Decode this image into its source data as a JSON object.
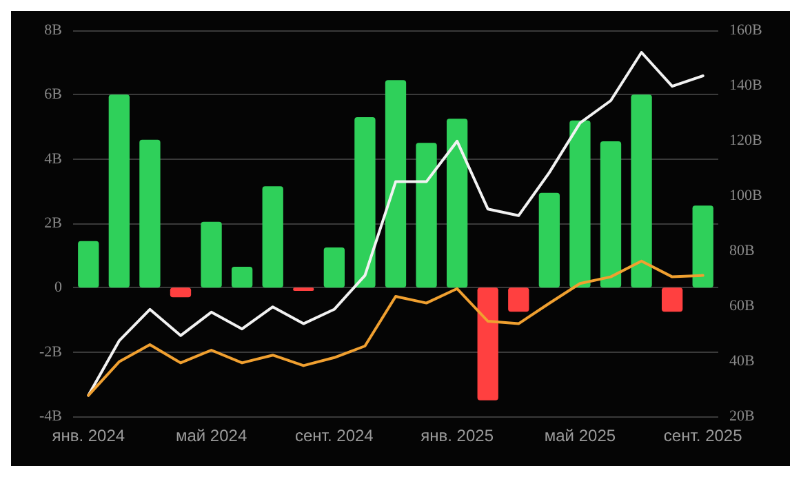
{
  "chart_data": {
    "type": "bar",
    "categories": [
      "янв. 2024",
      null,
      null,
      null,
      "май 2024",
      null,
      null,
      null,
      "сент. 2024",
      null,
      null,
      null,
      "янв. 2025",
      null,
      null,
      null,
      "май 2025",
      null,
      null,
      null,
      "сент. 2025"
    ],
    "series": [
      {
        "colors": [
          "#2fd05a",
          "#2fd05a",
          "#2fd05a",
          "#ff4040",
          "#2fd05a",
          "#2fd05a",
          "#2fd05a",
          "#ff4040",
          "#2fd05a",
          "#2fd05a",
          "#2fd05a",
          "#2fd05a",
          "#2fd05a",
          "#ff4040",
          "#ff4040",
          "#2fd05a",
          "#2fd05a",
          "#2fd05a",
          "#2fd05a",
          "#ff4040",
          "#2fd05a"
        ],
        "values": [
          1.45,
          6.0,
          4.6,
          -0.3,
          2.05,
          0.65,
          3.15,
          -0.1,
          1.25,
          5.3,
          6.45,
          4.5,
          5.25,
          -3.5,
          -0.75,
          2.95,
          5.2,
          4.55,
          6.0,
          -0.75,
          2.55
        ]
      },
      {
        "type": "line",
        "axis": "y2",
        "color": "#f2f2f2",
        "values": [
          27.6,
          47.4,
          58.8,
          49.3,
          57.8,
          51.7,
          59.7,
          53.6,
          58.8,
          71.1,
          105.1,
          105.1,
          119.8,
          95.2,
          92.8,
          108.4,
          126.4,
          134.5,
          152,
          139.7,
          143.5
        ]
      },
      {
        "type": "line",
        "axis": "y2",
        "color": "#f0a030",
        "values": [
          27.6,
          39.8,
          46,
          39.4,
          44,
          39.4,
          42.2,
          38.4,
          41.3,
          45.5,
          63.5,
          61.1,
          66.3,
          54.5,
          53.6,
          61,
          68.2,
          70.6,
          76.3,
          70.6,
          71.1
        ]
      }
    ],
    "ylim": [
      -4,
      8
    ],
    "yticks": [
      {
        "value": -4,
        "label": "-4B"
      },
      {
        "value": -2,
        "label": "-2B"
      },
      0,
      {
        "value": 2,
        "label": "2B"
      },
      {
        "value": 4,
        "label": "4B"
      },
      {
        "value": 6,
        "label": "6B"
      },
      {
        "value": 8,
        "label": "8B"
      }
    ],
    "y2lim": [
      20,
      160
    ],
    "y2ticks": [
      {
        "value": 20,
        "label": "20B"
      },
      {
        "value": 40,
        "label": "40B"
      },
      {
        "value": 60,
        "label": "60B"
      },
      {
        "value": 80,
        "label": "80B"
      },
      {
        "value": 100,
        "label": "100B"
      },
      {
        "value": 120,
        "label": "120B"
      },
      {
        "value": 140,
        "label": "140B"
      },
      {
        "value": 160,
        "label": "160B"
      }
    ],
    "grid": "y",
    "marker": "none",
    "line_style": "solid"
  }
}
